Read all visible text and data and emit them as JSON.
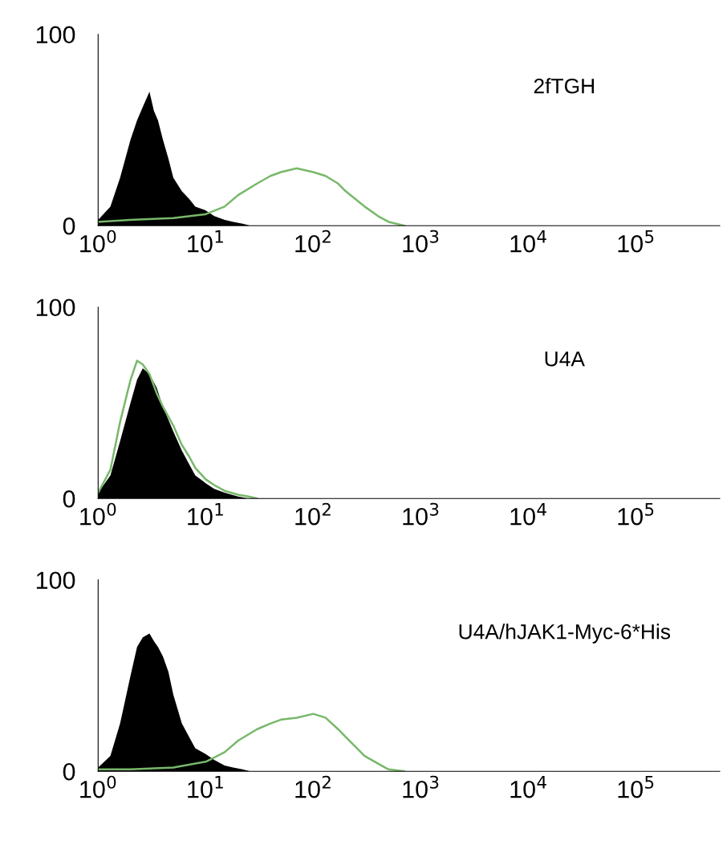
{
  "chart_data": [
    {
      "type": "area",
      "log": "x",
      "xlim": [
        1,
        600000
      ],
      "ylim": [
        0,
        100
      ],
      "yticks": [
        0,
        100
      ],
      "xticks": [
        {
          "value": 1,
          "label": "10$^{0}$"
        },
        {
          "value": 10,
          "label": "10$^{1}$"
        },
        {
          "value": 100,
          "label": "10$^{2}$"
        },
        {
          "value": 1000,
          "label": "10$^{3}$"
        },
        {
          "value": 10000,
          "label": "10$^{4}$"
        },
        {
          "value": 100000,
          "label": "10$^{5}$"
        }
      ],
      "grid": false,
      "annotations": [
        "2fTGH"
      ],
      "series": [
        {
          "color": "#000000",
          "x": [
            1,
            1.3,
            1.6,
            2,
            2.3,
            2.6,
            3,
            3.3,
            3.6,
            4,
            4.5,
            5,
            6,
            7,
            8,
            10,
            12,
            15,
            18,
            22,
            26
          ],
          "values": [
            3,
            10,
            25,
            45,
            55,
            62,
            70,
            60,
            55,
            45,
            35,
            25,
            18,
            14,
            10,
            8,
            5,
            3,
            2,
            1,
            0
          ]
        },
        {
          "type": "line",
          "color": "#78b86a",
          "x": [
            1,
            2,
            5,
            10,
            15,
            20,
            30,
            40,
            50,
            70,
            100,
            130,
            170,
            200,
            300,
            400,
            500,
            700
          ],
          "values": [
            2,
            3,
            4,
            6,
            10,
            16,
            22,
            26,
            28,
            30,
            28,
            26,
            22,
            18,
            10,
            5,
            2,
            0
          ]
        }
      ]
    },
    {
      "type": "area",
      "log": "x",
      "xlim": [
        1,
        600000
      ],
      "ylim": [
        0,
        100
      ],
      "yticks": [
        0,
        100
      ],
      "xticks": [
        {
          "value": 1,
          "label": "10$^{0}$"
        },
        {
          "value": 10,
          "label": "10$^{1}$"
        },
        {
          "value": 100,
          "label": "10$^{2}$"
        },
        {
          "value": 1000,
          "label": "10$^{3}$"
        },
        {
          "value": 10000,
          "label": "10$^{4}$"
        },
        {
          "value": 100000,
          "label": "10$^{5}$"
        }
      ],
      "grid": false,
      "annotations": [
        "U4A"
      ],
      "series": [
        {
          "color": "#000000",
          "x": [
            1,
            1.3,
            1.6,
            2,
            2.3,
            2.6,
            3,
            3.5,
            4,
            5,
            6,
            7,
            8,
            10,
            12,
            15,
            20,
            25
          ],
          "values": [
            3,
            12,
            30,
            50,
            62,
            68,
            65,
            58,
            48,
            35,
            25,
            18,
            12,
            8,
            5,
            3,
            1,
            0
          ]
        },
        {
          "type": "line",
          "color": "#78b86a",
          "x": [
            1,
            1.3,
            1.6,
            2,
            2.3,
            2.6,
            3,
            3.5,
            4,
            5,
            6,
            7,
            8,
            10,
            12,
            15,
            20,
            25,
            30
          ],
          "values": [
            3,
            15,
            40,
            62,
            72,
            70,
            65,
            55,
            48,
            38,
            28,
            22,
            16,
            10,
            7,
            4,
            2,
            1,
            0
          ]
        }
      ]
    },
    {
      "type": "area",
      "log": "x",
      "xlim": [
        1,
        600000
      ],
      "ylim": [
        0,
        100
      ],
      "yticks": [
        0,
        100
      ],
      "xticks": [
        {
          "value": 1,
          "label": "10$^{0}$"
        },
        {
          "value": 10,
          "label": "10$^{1}$"
        },
        {
          "value": 100,
          "label": "10$^{2}$"
        },
        {
          "value": 1000,
          "label": "10$^{3}$"
        },
        {
          "value": 10000,
          "label": "10$^{4}$"
        },
        {
          "value": 100000,
          "label": "10$^{5}$"
        }
      ],
      "grid": false,
      "annotations": [
        "U4A/hJAK1-Myc-6*His"
      ],
      "series": [
        {
          "color": "#000000",
          "x": [
            1,
            1.3,
            1.6,
            2,
            2.3,
            2.6,
            3,
            3.3,
            3.6,
            4,
            4.5,
            5,
            6,
            7,
            8,
            10,
            12,
            15,
            18,
            22,
            26
          ],
          "values": [
            2,
            8,
            25,
            50,
            65,
            70,
            72,
            68,
            65,
            60,
            52,
            40,
            25,
            18,
            12,
            9,
            6,
            3,
            2,
            1,
            0
          ]
        },
        {
          "type": "line",
          "color": "#78b86a",
          "x": [
            1,
            2,
            5,
            10,
            15,
            20,
            30,
            40,
            50,
            70,
            100,
            130,
            170,
            200,
            300,
            400,
            500,
            700
          ],
          "values": [
            1,
            1,
            2,
            5,
            10,
            16,
            22,
            25,
            27,
            28,
            30,
            28,
            22,
            18,
            8,
            4,
            1,
            0
          ]
        }
      ]
    }
  ]
}
